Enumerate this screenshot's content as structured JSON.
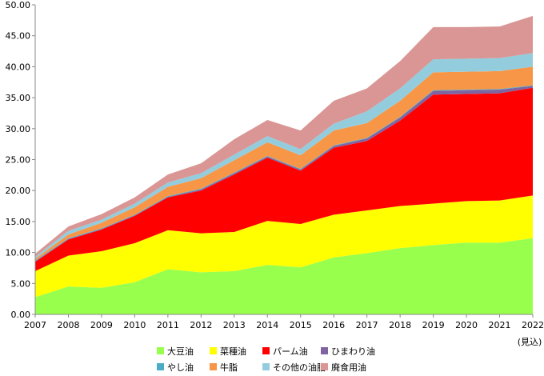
{
  "chart_data": {
    "type": "area",
    "stacked": true,
    "title": "",
    "xlabel": "",
    "ylabel": "",
    "ylim": [
      0,
      50
    ],
    "yticks": [
      "0.00",
      "5.00",
      "10.00",
      "15.00",
      "20.00",
      "25.00",
      "30.00",
      "35.00",
      "40.00",
      "45.00",
      "50.00"
    ],
    "ytick_values": [
      0,
      5,
      10,
      15,
      20,
      25,
      30,
      35,
      40,
      45,
      50
    ],
    "categories": [
      "2007",
      "2008",
      "2009",
      "2010",
      "2011",
      "2012",
      "2013",
      "2014",
      "2015",
      "2016",
      "2017",
      "2018",
      "2019",
      "2020",
      "2021",
      "2022"
    ],
    "last_category_note": "(見込)",
    "grid": false,
    "legend_position": "bottom",
    "series": [
      {
        "name": "大豆油",
        "color": "#99ff4d",
        "values": [
          2.8,
          4.5,
          4.3,
          5.2,
          7.3,
          6.8,
          7.0,
          8.0,
          7.6,
          9.2,
          9.9,
          10.7,
          11.2,
          11.6,
          11.6,
          12.3
        ]
      },
      {
        "name": "菜種油",
        "color": "#ffff00",
        "values": [
          4.2,
          5.0,
          5.9,
          6.3,
          6.3,
          6.3,
          6.3,
          7.1,
          7.0,
          6.9,
          6.9,
          6.8,
          6.7,
          6.7,
          6.8,
          6.9
        ]
      },
      {
        "name": "パーム油",
        "color": "#ff0000",
        "values": [
          1.5,
          2.6,
          3.5,
          4.4,
          5.3,
          6.9,
          9.3,
          10.2,
          8.6,
          10.8,
          11.2,
          13.8,
          17.6,
          17.3,
          17.3,
          17.4
        ]
      },
      {
        "name": "ひまわり油",
        "color": "#8064a2",
        "values": [
          0.1,
          0.1,
          0.1,
          0.1,
          0.1,
          0.2,
          0.2,
          0.2,
          0.2,
          0.3,
          0.4,
          0.5,
          0.6,
          0.6,
          0.6,
          0.3
        ]
      },
      {
        "name": "やし油",
        "color": "#4bacc6",
        "values": [
          0.1,
          0.1,
          0.1,
          0.1,
          0.1,
          0.1,
          0.1,
          0.1,
          0.1,
          0.1,
          0.1,
          0.1,
          0.1,
          0.1,
          0.1,
          0.1
        ]
      },
      {
        "name": "牛脂",
        "color": "#f79646",
        "values": [
          0.3,
          0.6,
          0.9,
          1.2,
          1.5,
          1.7,
          2.0,
          2.2,
          2.2,
          2.4,
          2.4,
          2.6,
          2.9,
          2.9,
          2.9,
          3.0
        ]
      },
      {
        "name": "その他の油脂",
        "color": "#93cddd",
        "values": [
          0.3,
          0.6,
          0.5,
          0.6,
          0.7,
          0.8,
          0.9,
          1.0,
          1.0,
          1.1,
          1.9,
          2.0,
          2.1,
          2.1,
          2.1,
          2.2
        ]
      },
      {
        "name": "廃食用油",
        "color": "#d99694",
        "values": [
          0.5,
          0.7,
          0.9,
          1.0,
          1.3,
          1.6,
          2.5,
          2.6,
          3.0,
          3.7,
          3.7,
          4.4,
          5.2,
          5.1,
          5.1,
          6.0
        ]
      }
    ]
  }
}
